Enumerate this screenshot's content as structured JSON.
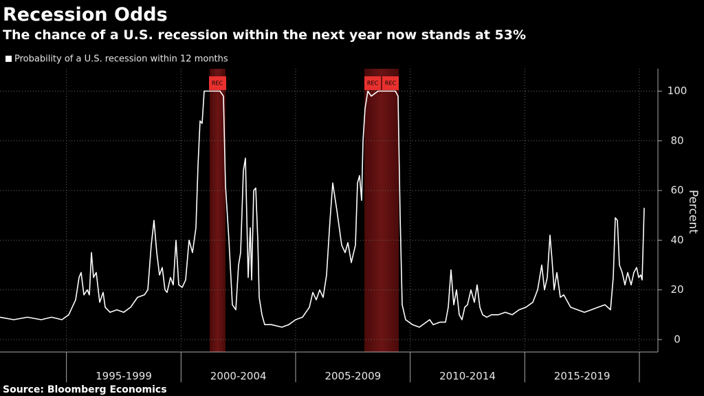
{
  "chart_data": {
    "type": "line",
    "title": "Recession Odds",
    "subtitle": "The chance of a U.S. recession within the next year now stands at 53%",
    "y_label": "Percent",
    "source": "Source: Bloomberg Economics",
    "x_range_labels": [
      "1995-1999",
      "2000-2004",
      "2005-2009",
      "2010-2014",
      "2015-2019"
    ],
    "xlim": [
      1992.1,
      2020.81
    ],
    "xticks": [
      1995,
      2000,
      2005,
      2010,
      2015,
      2020
    ],
    "ylim": [
      -5,
      109
    ],
    "yticks": [
      0,
      20,
      40,
      60,
      80,
      100
    ],
    "grid": true,
    "recession_label": "REC",
    "recessions": [
      {
        "start": 2001.25,
        "end": 2001.94
      },
      {
        "start": 2008.0,
        "end": 2009.5
      }
    ],
    "series": [
      {
        "name": "Probability of a U.S. recession within 12 months",
        "color": "#ffffff",
        "x": [
          1992.1,
          1992.7,
          1993.3,
          1993.9,
          1994.35,
          1994.8,
          1995.1,
          1995.4,
          1995.55,
          1995.64,
          1995.76,
          1995.91,
          1996.0,
          1996.09,
          1996.18,
          1996.3,
          1996.45,
          1996.6,
          1996.69,
          1996.9,
          1997.2,
          1997.5,
          1997.8,
          1998.1,
          1998.4,
          1998.55,
          1998.7,
          1998.82,
          1998.94,
          1999.06,
          1999.18,
          1999.3,
          1999.39,
          1999.54,
          1999.66,
          1999.78,
          1999.9,
          2000.05,
          2000.2,
          2000.35,
          2000.5,
          2000.65,
          2000.74,
          2000.83,
          2000.92,
          2001.01,
          2001.13,
          2001.4,
          2001.7,
          2001.85,
          2001.94,
          2002.09,
          2002.24,
          2002.39,
          2002.51,
          2002.6,
          2002.72,
          2002.81,
          2002.93,
          2003.02,
          2003.08,
          2003.17,
          2003.26,
          2003.35,
          2003.41,
          2003.53,
          2003.65,
          2003.95,
          2004.4,
          2004.7,
          2005.0,
          2005.3,
          2005.6,
          2005.75,
          2005.9,
          2006.05,
          2006.2,
          2006.35,
          2006.5,
          2006.62,
          2006.8,
          2007.01,
          2007.16,
          2007.28,
          2007.43,
          2007.61,
          2007.7,
          2007.79,
          2007.88,
          2007.94,
          2008.03,
          2008.15,
          2008.3,
          2008.6,
          2008.9,
          2009.35,
          2009.47,
          2009.56,
          2009.65,
          2009.8,
          2010.1,
          2010.4,
          2010.7,
          2010.85,
          2011.0,
          2011.3,
          2011.54,
          2011.66,
          2011.78,
          2011.9,
          2012.02,
          2012.14,
          2012.26,
          2012.38,
          2012.5,
          2012.65,
          2012.8,
          2012.92,
          2013.04,
          2013.16,
          2013.34,
          2013.55,
          2013.85,
          2014.15,
          2014.45,
          2014.75,
          2015.05,
          2015.35,
          2015.56,
          2015.74,
          2015.86,
          2015.98,
          2016.1,
          2016.19,
          2016.28,
          2016.4,
          2016.55,
          2016.7,
          2017.0,
          2017.3,
          2017.6,
          2017.9,
          2018.2,
          2018.5,
          2018.74,
          2018.86,
          2018.95,
          2019.04,
          2019.13,
          2019.25,
          2019.37,
          2019.49,
          2019.64,
          2019.76,
          2019.88,
          2019.97,
          2020.06,
          2020.12,
          2020.21
        ],
        "values": [
          9,
          8,
          9,
          8,
          9,
          8,
          10,
          16,
          25,
          27,
          18,
          20,
          18,
          35,
          25,
          27,
          15,
          19,
          13,
          11,
          12,
          11,
          13,
          17,
          18,
          20,
          38,
          48,
          35,
          26,
          29,
          20,
          19,
          25,
          22,
          40,
          22,
          21,
          24,
          40,
          35,
          45,
          70,
          88,
          87,
          100,
          100,
          100,
          100,
          98,
          62,
          40,
          14,
          12,
          30,
          35,
          68,
          73,
          25,
          45,
          24,
          60,
          61,
          40,
          17,
          10,
          6,
          6,
          5,
          6,
          8,
          9,
          13,
          19,
          16,
          20,
          17,
          26,
          48,
          63,
          52,
          38,
          35,
          39,
          31,
          38,
          63,
          66,
          56,
          80,
          93,
          100,
          98,
          100,
          100,
          100,
          98,
          50,
          14,
          8,
          6,
          5,
          7,
          8,
          6,
          7,
          7,
          13,
          28,
          14,
          20,
          10,
          8,
          13,
          14,
          20,
          15,
          22,
          13,
          10,
          9,
          10,
          10,
          11,
          10,
          12,
          13,
          15,
          20,
          30,
          20,
          25,
          42,
          32,
          20,
          27,
          17,
          18,
          13,
          12,
          11,
          12,
          13,
          14,
          12,
          25,
          49,
          48,
          30,
          27,
          22,
          27,
          22,
          27,
          29,
          25,
          26,
          24,
          53
        ]
      }
    ]
  }
}
